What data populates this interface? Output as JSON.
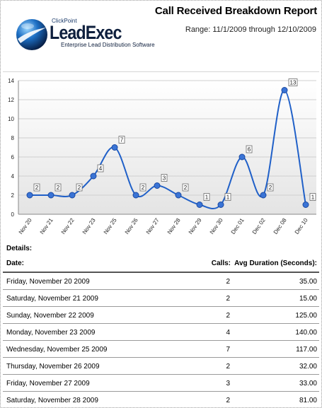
{
  "header": {
    "report_title": "Call Received Breakdown Report",
    "range_text": "Range: 11/1/2009 through 12/10/2009"
  },
  "logo": {
    "company": "ClickPoint",
    "product": "LeadExec",
    "tagline": "Enterprise Lead Distribution Software"
  },
  "chart_data": {
    "type": "line",
    "categories": [
      "Nov 20",
      "Nov 21",
      "Nov 22",
      "Nov 23",
      "Nov 25",
      "Nov 26",
      "Nov 27",
      "Nov 28",
      "Nov 29",
      "Nov 30",
      "Dec 01",
      "Dec 02",
      "Dec 08",
      "Dec 10"
    ],
    "values": [
      2,
      2,
      2,
      4,
      7,
      2,
      3,
      2,
      1,
      1,
      6,
      2,
      13,
      1
    ],
    "data_labels": [
      "2",
      "2",
      "2",
      "4",
      "7",
      "2",
      "3",
      "2",
      "1",
      "1",
      "6",
      "2",
      "13",
      "1"
    ],
    "ylim": [
      0,
      14
    ],
    "y_ticks": [
      "0",
      "2",
      "4",
      "6",
      "8",
      "10",
      "12",
      "14"
    ],
    "smooth": true,
    "grid": "horizontal",
    "colors": {
      "line": "#2060c8",
      "marker": "#3a74d6",
      "plot_bg_top": "#ffffff",
      "plot_bg_bottom": "#e4e4e4"
    }
  },
  "details": {
    "heading": "Details:",
    "columns": [
      "Date:",
      "Calls:",
      "Avg Duration (Seconds):"
    ],
    "rows": [
      {
        "date": "Friday, November 20 2009",
        "calls": "2",
        "duration": "35.00"
      },
      {
        "date": "Saturday, November 21 2009",
        "calls": "2",
        "duration": "15.00"
      },
      {
        "date": "Sunday, November 22 2009",
        "calls": "2",
        "duration": "125.00"
      },
      {
        "date": "Monday, November 23 2009",
        "calls": "4",
        "duration": "140.00"
      },
      {
        "date": "Wednesday, November 25 2009",
        "calls": "7",
        "duration": "117.00"
      },
      {
        "date": "Thursday, November 26 2009",
        "calls": "2",
        "duration": "32.00"
      },
      {
        "date": "Friday, November 27 2009",
        "calls": "3",
        "duration": "33.00"
      },
      {
        "date": "Saturday, November 28 2009",
        "calls": "2",
        "duration": "81.00"
      }
    ]
  }
}
